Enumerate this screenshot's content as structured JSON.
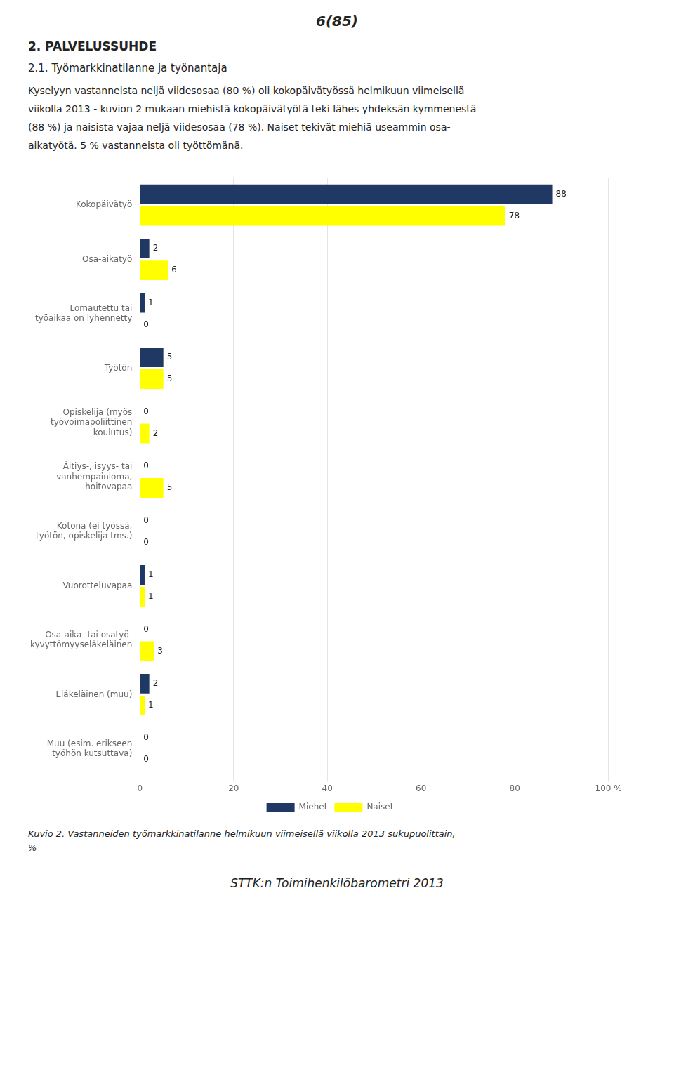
{
  "page_header": "6(85)",
  "section_header": "2.  PALVELUSSUHDE",
  "subsection_header": "2.1.  Työmarkkinatilanne ja  työnantaja",
  "body_lines": [
    "Kyselyyn vastanneista neljä viidesosaa (80 %) oli kokopäivätyössä helmikuun viimeisellä",
    "viikolla 2013 - kuvion 2 mukaan miehistä kokopäivätyötä teki lähes yhdeksän kymmenestä",
    "(88 %) ja naisista vajaa neljä viidesosaa (78 %). Naiset tekivät miehiä useammin osa-",
    "aikatyötä.  5 % vastanneista oli  työttömänä."
  ],
  "caption_lines": [
    "Kuvio 2.  Vastanneiden työmarkkinatilanne helmikuun viimeisellä viikolla 2013 sukupuolittain,",
    "%"
  ],
  "footer": "STTK:n  Toimihenkilöbarometri  2013",
  "chart_data": {
    "type": "bar",
    "orientation": "horizontal",
    "categories": [
      "Kokopäivätyö",
      "Osa-aikatyö",
      "Lomautettu tai\ntyöaikaa on lyhennetty",
      "Työtön",
      "Opiskelija (myös\ntyövoimapoliittinen\nkoulutus)",
      "Äitiys-, isyys- tai\nvanhempainloma,\nhoitovapaa",
      "Kotona (ei työssä,\ntyötön, opiskelija tms.)",
      "Vuorotteluvapaa",
      "Osa-aika- tai osatyö-\nkyvyttömyyseläkeläinen",
      "Eläkeläinen (muu)",
      "Muu (esim. erikseen\ntyöhön kutsuttava)"
    ],
    "series": [
      {
        "name": "Miehet",
        "color": "#1f3864",
        "values": [
          88,
          2,
          1,
          5,
          0,
          0,
          0,
          1,
          0,
          2,
          0
        ]
      },
      {
        "name": "Naiset",
        "color": "#ffff00",
        "values": [
          78,
          6,
          0,
          5,
          2,
          5,
          0,
          1,
          3,
          1,
          0
        ]
      }
    ],
    "xlim": [
      0,
      105
    ],
    "xticks": [
      0,
      20,
      40,
      60,
      80,
      {
        "value": 100,
        "label": "100 %"
      }
    ],
    "grid": true,
    "legend": "bottom",
    "data_labels": true
  }
}
